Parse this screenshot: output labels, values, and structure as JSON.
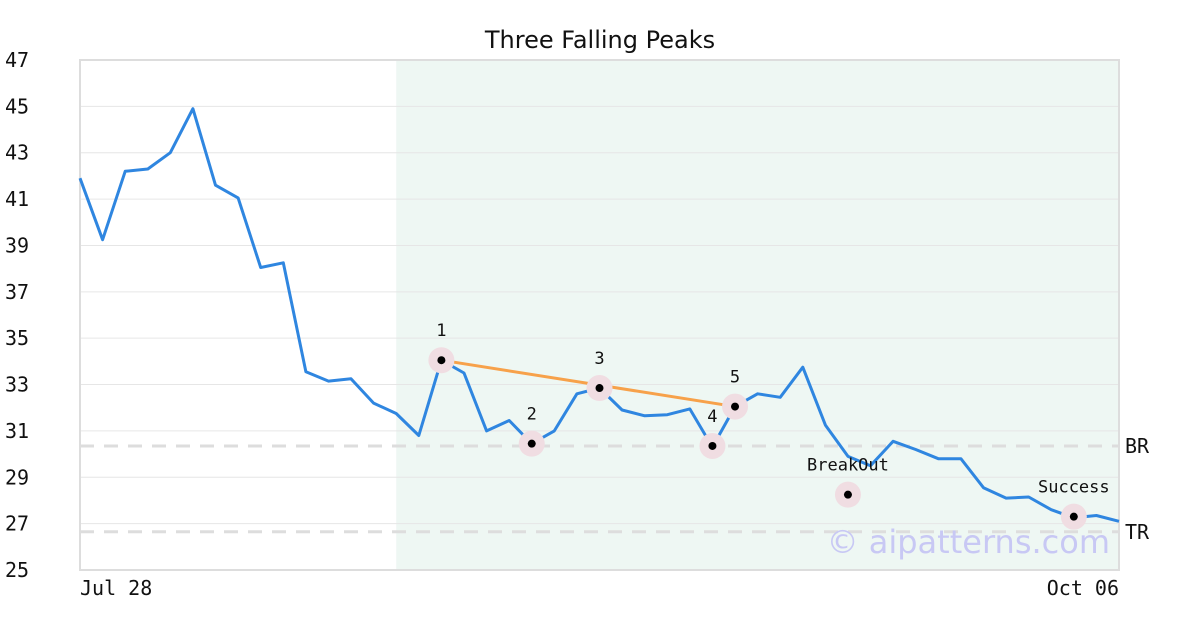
{
  "chart_data": {
    "type": "line",
    "title": "Three Falling Peaks",
    "xlabel": "",
    "ylabel": "",
    "ylim": [
      25,
      47
    ],
    "yticks": [
      "25",
      "27",
      "29",
      "31",
      "33",
      "35",
      "37",
      "39",
      "41",
      "43",
      "45",
      "47"
    ],
    "xticks": [
      {
        "label": "Jul 28",
        "index": 0
      },
      {
        "label": "Oct 06",
        "index": 46
      }
    ],
    "grid": true,
    "series": [
      {
        "values": [
          41.9,
          39.25,
          42.2,
          42.3,
          43.0,
          44.9,
          41.6,
          41.05,
          38.05,
          38.25,
          33.55,
          33.15,
          33.25,
          32.2,
          31.75,
          30.8,
          34.05,
          33.5,
          31.0,
          31.45,
          30.45,
          31.0,
          32.6,
          32.85,
          31.9,
          31.65,
          31.7,
          31.95,
          30.3,
          32.05,
          32.6,
          32.45,
          33.75,
          31.25,
          29.9,
          29.5,
          30.55,
          30.2,
          29.8,
          29.8,
          28.55,
          28.1,
          28.15,
          27.6,
          27.25,
          27.35,
          27.1
        ]
      }
    ],
    "pattern_region": {
      "start_index": 14,
      "end_index": 46
    },
    "trendline": [
      {
        "index": 16,
        "value": 34.05
      },
      {
        "index": 29,
        "value": 32.05
      }
    ],
    "reference_lines": [
      {
        "label": "BR",
        "value": 30.35
      },
      {
        "label": "TR",
        "value": 26.65
      }
    ],
    "annotations": [
      {
        "label": "1",
        "index": 16,
        "value": 34.05,
        "label_pos": "above"
      },
      {
        "label": "2",
        "index": 20,
        "value": 30.45,
        "label_pos": "above"
      },
      {
        "label": "3",
        "index": 23,
        "value": 32.85,
        "label_pos": "above"
      },
      {
        "label": "4",
        "index": 28,
        "value": 30.35,
        "label_pos": "above"
      },
      {
        "label": "5",
        "index": 29,
        "value": 32.05,
        "label_pos": "above"
      },
      {
        "label": "BreakOut",
        "index": 34,
        "value": 28.25,
        "label_pos": "above"
      },
      {
        "label": "Success",
        "index": 44,
        "value": 27.3,
        "label_pos": "above"
      }
    ],
    "colors": {
      "line": "#2f86e0",
      "trendline": "#f7a14a",
      "region": "#eef7f3",
      "marker_halo": "#f0dde2",
      "reference": "#dddddd",
      "grid": "#e6e6e6",
      "axes": "#dddddd"
    }
  },
  "watermark": "© aipatterns.com"
}
